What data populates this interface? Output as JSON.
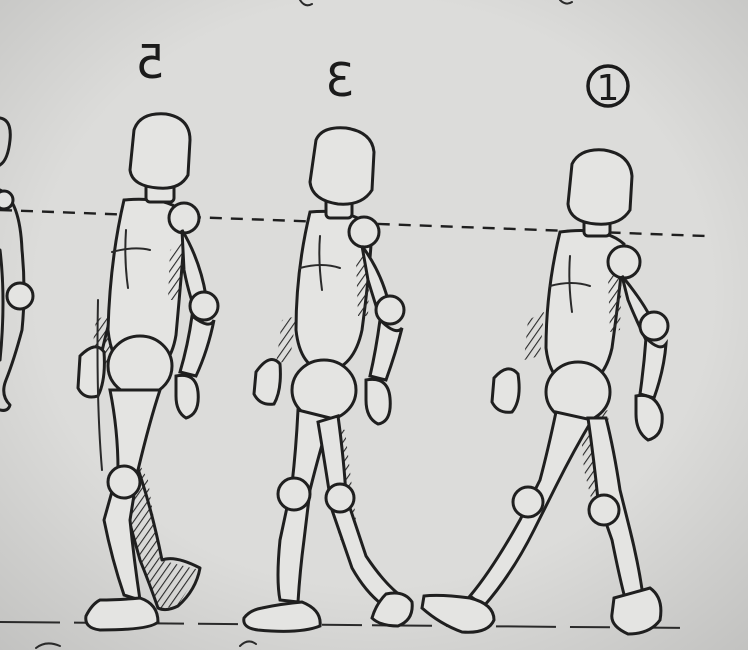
{
  "sketch": {
    "frame_numbers": [
      {
        "id": "frame-5",
        "label": "5",
        "mirrored": true
      },
      {
        "id": "frame-3",
        "label": "3",
        "mirrored": true
      },
      {
        "id": "frame-1",
        "label": "1",
        "circled": true
      }
    ],
    "colors": {
      "paper": "#d9d9d7",
      "ink": "#1f1f1f"
    }
  }
}
